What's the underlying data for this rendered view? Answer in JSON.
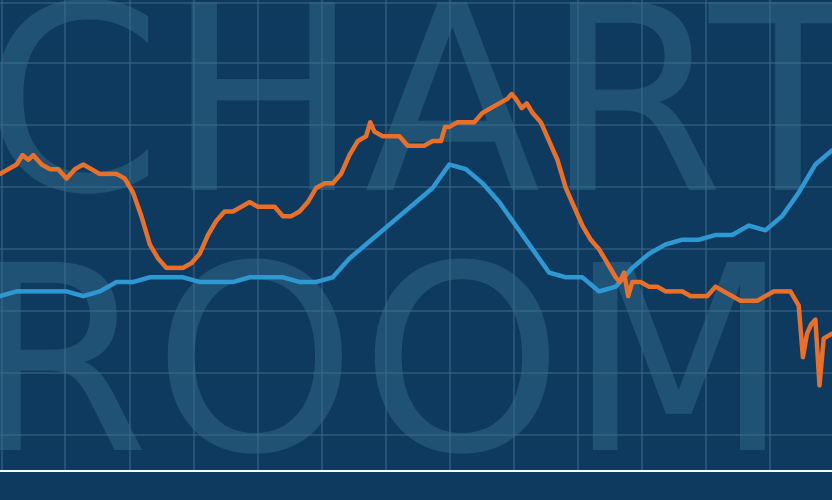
{
  "background": {
    "word_top": "CHART",
    "word_bottom": "ROOM"
  },
  "colors": {
    "background": "#0d3a5e",
    "grid": "#3d6a8c",
    "watermark": "#2f6686",
    "series_orange": "#e8702a",
    "series_blue": "#2f97d1",
    "baseline": "#ffffff"
  },
  "chart_data": {
    "type": "line",
    "grid": true,
    "x_range": [
      0,
      100
    ],
    "y_range": [
      0,
      100
    ],
    "series": [
      {
        "color": "#e8702a",
        "points": [
          [
            0,
            63
          ],
          [
            1,
            64
          ],
          [
            2,
            65
          ],
          [
            2.7,
            67
          ],
          [
            3.4,
            66
          ],
          [
            4,
            67
          ],
          [
            5,
            65
          ],
          [
            6,
            64
          ],
          [
            7,
            64
          ],
          [
            8,
            62
          ],
          [
            9,
            64
          ],
          [
            10,
            65
          ],
          [
            11,
            64
          ],
          [
            12,
            63
          ],
          [
            13,
            63
          ],
          [
            14,
            63
          ],
          [
            15,
            62
          ],
          [
            16,
            59
          ],
          [
            17,
            54
          ],
          [
            18,
            48
          ],
          [
            19,
            45
          ],
          [
            20,
            43
          ],
          [
            21,
            43
          ],
          [
            22,
            43
          ],
          [
            23,
            44
          ],
          [
            24,
            46
          ],
          [
            25,
            50
          ],
          [
            26,
            53
          ],
          [
            27,
            55
          ],
          [
            28,
            55
          ],
          [
            29,
            56
          ],
          [
            30,
            57
          ],
          [
            31,
            56
          ],
          [
            32,
            56
          ],
          [
            33,
            56
          ],
          [
            34,
            54
          ],
          [
            35,
            54
          ],
          [
            36,
            55
          ],
          [
            37,
            57
          ],
          [
            38,
            60
          ],
          [
            39,
            61
          ],
          [
            40,
            61
          ],
          [
            41,
            63
          ],
          [
            42,
            67
          ],
          [
            43,
            70
          ],
          [
            44,
            71
          ],
          [
            44.5,
            74
          ],
          [
            45,
            72
          ],
          [
            46,
            71
          ],
          [
            47,
            71
          ],
          [
            48,
            71
          ],
          [
            49,
            69
          ],
          [
            50,
            69
          ],
          [
            51,
            69
          ],
          [
            52,
            70
          ],
          [
            53,
            70
          ],
          [
            53.5,
            73
          ],
          [
            54,
            73
          ],
          [
            55,
            74
          ],
          [
            56,
            74
          ],
          [
            57,
            74
          ],
          [
            58,
            76
          ],
          [
            59,
            77
          ],
          [
            60,
            78
          ],
          [
            61,
            79
          ],
          [
            61.5,
            80
          ],
          [
            62,
            79
          ],
          [
            62.7,
            77
          ],
          [
            63.3,
            78
          ],
          [
            64,
            76
          ],
          [
            65,
            74
          ],
          [
            66,
            70
          ],
          [
            67,
            66
          ],
          [
            68,
            60
          ],
          [
            69,
            56
          ],
          [
            70,
            52
          ],
          [
            71,
            49
          ],
          [
            72,
            47
          ],
          [
            73,
            44
          ],
          [
            74,
            41
          ],
          [
            74.5,
            40
          ],
          [
            75,
            42
          ],
          [
            75.5,
            37
          ],
          [
            76,
            40
          ],
          [
            77,
            40
          ],
          [
            78,
            39
          ],
          [
            79,
            39
          ],
          [
            80,
            38
          ],
          [
            81,
            38
          ],
          [
            82,
            38
          ],
          [
            83,
            37
          ],
          [
            84,
            37
          ],
          [
            85,
            37
          ],
          [
            86,
            39
          ],
          [
            87,
            38
          ],
          [
            88,
            37
          ],
          [
            89,
            36
          ],
          [
            90,
            36
          ],
          [
            91,
            36
          ],
          [
            92,
            37
          ],
          [
            93,
            38
          ],
          [
            94,
            38
          ],
          [
            95,
            38
          ],
          [
            96,
            35
          ],
          [
            96.5,
            24
          ],
          [
            97,
            29
          ],
          [
            97.5,
            31
          ],
          [
            98,
            32
          ],
          [
            98.5,
            18
          ],
          [
            99,
            28
          ],
          [
            100,
            29
          ]
        ]
      },
      {
        "color": "#2f97d1",
        "points": [
          [
            0,
            37
          ],
          [
            2,
            38
          ],
          [
            4,
            38
          ],
          [
            6,
            38
          ],
          [
            8,
            38
          ],
          [
            10,
            37
          ],
          [
            12,
            38
          ],
          [
            14,
            40
          ],
          [
            16,
            40
          ],
          [
            18,
            41
          ],
          [
            20,
            41
          ],
          [
            22,
            41
          ],
          [
            24,
            40
          ],
          [
            26,
            40
          ],
          [
            28,
            40
          ],
          [
            30,
            41
          ],
          [
            32,
            41
          ],
          [
            34,
            41
          ],
          [
            36,
            40
          ],
          [
            38,
            40
          ],
          [
            40,
            41
          ],
          [
            42,
            45
          ],
          [
            44,
            48
          ],
          [
            46,
            51
          ],
          [
            48,
            54
          ],
          [
            50,
            57
          ],
          [
            52,
            60
          ],
          [
            54,
            65
          ],
          [
            56,
            64
          ],
          [
            58,
            61
          ],
          [
            60,
            57
          ],
          [
            62,
            52
          ],
          [
            64,
            47
          ],
          [
            66,
            42
          ],
          [
            68,
            41
          ],
          [
            70,
            41
          ],
          [
            72,
            38
          ],
          [
            74,
            39
          ],
          [
            76,
            43
          ],
          [
            78,
            46
          ],
          [
            80,
            48
          ],
          [
            82,
            49
          ],
          [
            84,
            49
          ],
          [
            86,
            50
          ],
          [
            88,
            50
          ],
          [
            90,
            52
          ],
          [
            92,
            51
          ],
          [
            94,
            54
          ],
          [
            96,
            59
          ],
          [
            98,
            65
          ],
          [
            100,
            68
          ]
        ]
      }
    ]
  }
}
